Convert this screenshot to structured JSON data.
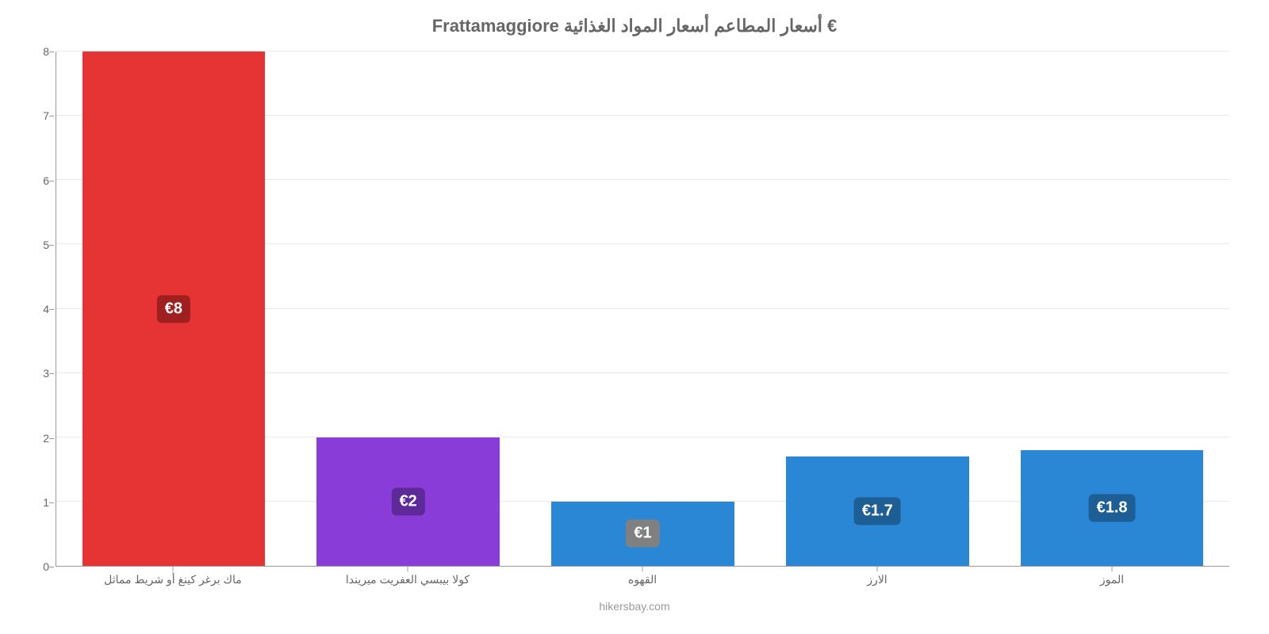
{
  "chart": {
    "type": "bar",
    "title": "Frattamaggiore أسعار المطاعم أسعار المواد الغذائية €",
    "title_color": "#666666",
    "title_fontsize": 22,
    "background_color": "#ffffff",
    "grid_color": "#e8e8e8",
    "axis_color": "#999999",
    "label_color": "#666666",
    "y": {
      "min": 0,
      "max": 8,
      "ticks": [
        0,
        1,
        2,
        3,
        4,
        5,
        6,
        7,
        8
      ]
    },
    "bars": [
      {
        "category": "ماك برغر كينغ أو شريط مماثل",
        "value": 8,
        "display": "€8",
        "bar_color": "#e63333",
        "badge_color": "#a02020"
      },
      {
        "category": "كولا بيبسي العفريت ميريندا",
        "value": 2,
        "display": "€2",
        "bar_color": "#8a3cd9",
        "badge_color": "#5e2a99"
      },
      {
        "category": "القهوه",
        "value": 1,
        "display": "€1",
        "bar_color": "#2a87d6",
        "badge_color": "#808080"
      },
      {
        "category": "الارز",
        "value": 1.7,
        "display": "€1.7",
        "bar_color": "#2a87d6",
        "badge_color": "#1d5e94"
      },
      {
        "category": "الموز",
        "value": 1.8,
        "display": "€1.8",
        "bar_color": "#2a87d6",
        "badge_color": "#1d5e94"
      }
    ],
    "attribution": "hikersbay.com",
    "attribution_color": "#999999",
    "value_label_fontsize": 20,
    "x_label_fontsize": 14,
    "y_label_fontsize": 14,
    "bar_width_ratio": 0.78
  }
}
